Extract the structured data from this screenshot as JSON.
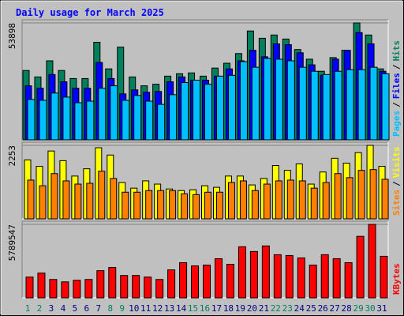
{
  "chart_data": [
    {
      "type": "bar",
      "title": "Daily usage for March 2025",
      "categories": [
        "1",
        "2",
        "3",
        "4",
        "5",
        "6",
        "7",
        "8",
        "9",
        "10",
        "11",
        "12",
        "13",
        "14",
        "15",
        "16",
        "17",
        "18",
        "19",
        "20",
        "21",
        "22",
        "23",
        "24",
        "25",
        "26",
        "27",
        "28",
        "29",
        "30",
        "31"
      ],
      "category_label_colors": [
        "#008060",
        "#008060",
        "#000080",
        "#000080",
        "#000080",
        "#000080",
        "#000080",
        "#008060",
        "#008060",
        "#000080",
        "#000080",
        "#000080",
        "#000080",
        "#000080",
        "#008060",
        "#008060",
        "#000080",
        "#000080",
        "#000080",
        "#000080",
        "#000080",
        "#008060",
        "#008060",
        "#000080",
        "#000080",
        "#000080",
        "#000080",
        "#000080",
        "#008060",
        "#008060",
        "#000080"
      ],
      "legend_separator": "/",
      "ylim": [
        0,
        53898
      ],
      "yticks": [
        53898
      ],
      "series": [
        {
          "name": "Hits",
          "color": "#00805c",
          "values": [
            31966,
            28993,
            36427,
            31966,
            28249,
            28249,
            44976,
            32710,
            42746,
            28993,
            24904,
            25647,
            29364,
            30479,
            30851,
            29364,
            33081,
            35312,
            39772,
            50180,
            46834,
            48321,
            46463,
            41630,
            37170,
            31595,
            37914,
            41259,
            53898,
            48321,
            32710
          ]
        },
        {
          "name": "Files",
          "color": "#0000ff",
          "values": [
            24904,
            23789,
            30108,
            26762,
            23789,
            23789,
            35683,
            28249,
            21187,
            23045,
            21930,
            22302,
            26762,
            28993,
            27506,
            27506,
            29364,
            32710,
            36427,
            41259,
            38285,
            44232,
            43861,
            40144,
            34568,
            29736,
            37170,
            41259,
            49436,
            44232,
            31595
          ]
        },
        {
          "name": "Pages",
          "color": "#00c0ff",
          "values": [
            18585,
            18213,
            21559,
            19700,
            17098,
            17842,
            23789,
            24904,
            18213,
            20444,
            17842,
            16355,
            20815,
            26391,
            27506,
            25647,
            29364,
            29736,
            36055,
            33453,
            37542,
            37170,
            36427,
            33453,
            31595,
            30108,
            31595,
            32338,
            32338,
            33453,
            30479
          ]
        }
      ]
    },
    {
      "type": "bar",
      "legend_separator": "/",
      "ylim": [
        0,
        2253
      ],
      "yticks": [
        2253
      ],
      "series": [
        {
          "name": "Visits",
          "color": "#ffff00",
          "values": [
            1807,
            1609,
            2080,
            1783,
            1312,
            1535,
            2179,
            1956,
            1114,
            941,
            1164,
            1065,
            916,
            867,
            891,
            1015,
            966,
            1312,
            1312,
            1040,
            1238,
            1634,
            1486,
            1684,
            1065,
            1436,
            1857,
            1708,
            2030,
            2253,
            1609
          ]
        },
        {
          "name": "Sites",
          "color": "#ff8000",
          "values": [
            1188,
            1015,
            1387,
            1164,
            1065,
            1090,
            1461,
            1238,
            817,
            817,
            867,
            867,
            867,
            768,
            743,
            817,
            817,
            1114,
            1164,
            867,
            1065,
            1164,
            1188,
            1164,
            941,
            1114,
            1387,
            1263,
            1486,
            1510,
            1213
          ]
        }
      ]
    },
    {
      "type": "bar",
      "ylim": [
        0,
        5789547
      ],
      "yticks": [
        5789547
      ],
      "series": [
        {
          "name": "KBytes",
          "color": "#ff0000",
          "values": [
            1636180,
            1950830,
            1447390,
            1258600,
            1384460,
            1447390,
            2139620,
            2391340,
            1762040,
            1762040,
            1636180,
            1447390,
            2202550,
            2768920,
            2517200,
            2580130,
            3083570,
            2643060,
            4027520,
            3649940,
            4090450,
            3398220,
            3335290,
            3146500,
            2580130,
            3398220,
            3083570,
            2768920,
            4845610,
            5789547,
            3272360
          ]
        }
      ]
    }
  ]
}
